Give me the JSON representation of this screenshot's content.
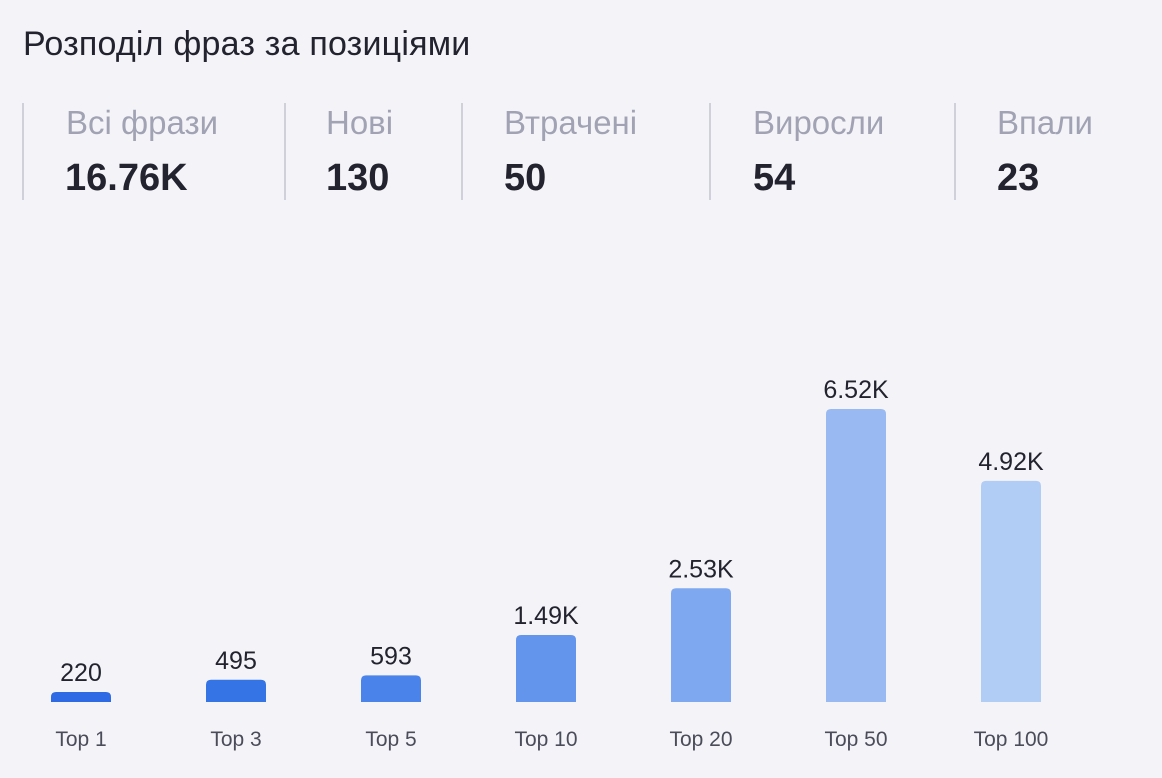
{
  "title": "Розподіл фраз за позиціями",
  "stats": [
    {
      "label": "Всі фрази",
      "value": "16.76K"
    },
    {
      "label": "Нові",
      "value": "130"
    },
    {
      "label": "Втрачені",
      "value": "50"
    },
    {
      "label": "Виросли",
      "value": "54"
    },
    {
      "label": "Впали",
      "value": "23"
    }
  ],
  "chart_data": {
    "type": "bar",
    "categories": [
      "Top 1",
      "Top 3",
      "Top 5",
      "Top 10",
      "Top 20",
      "Top 50",
      "Top 100"
    ],
    "values": [
      220,
      495,
      593,
      1490,
      2530,
      6520,
      4920
    ],
    "data_labels": [
      "220",
      "495",
      "593",
      "1.49K",
      "2.53K",
      "6.52K",
      "4.92K"
    ],
    "colors": [
      "#2d6ae3",
      "#3574e5",
      "#4a83ea",
      "#6495ed",
      "#7ea8f0",
      "#98b9f2",
      "#b1ccf5"
    ],
    "grid": false
  }
}
